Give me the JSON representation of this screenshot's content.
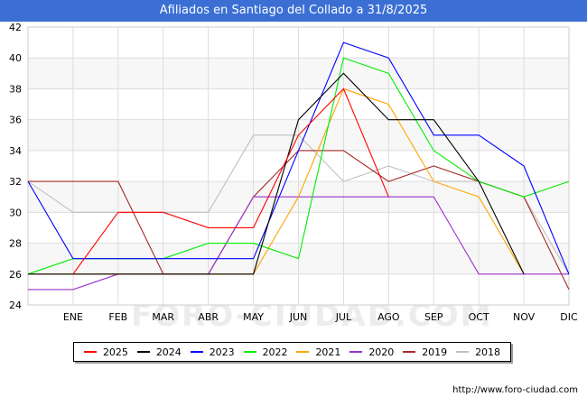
{
  "chart_data": {
    "type": "line",
    "title": "Afiliados en Santiago del Collado a 31/8/2025",
    "categories": [
      "ENE",
      "FEB",
      "MAR",
      "ABR",
      "MAY",
      "JUN",
      "JUL",
      "AGO",
      "SEP",
      "OCT",
      "NOV",
      "DIC"
    ],
    "x": [
      "",
      "ENE",
      "FEB",
      "MAR",
      "ABR",
      "MAY",
      "JUN",
      "JUL",
      "AGO",
      "SEP",
      "OCT",
      "NOV",
      "DIC"
    ],
    "ylim": [
      24,
      42
    ],
    "yticks": [
      24,
      26,
      28,
      30,
      32,
      34,
      36,
      38,
      40,
      42
    ],
    "grid": true,
    "legend_position": "bottom",
    "series": [
      {
        "name": "2018",
        "color": "#c0c0c0",
        "values": [
          32,
          30,
          30,
          30,
          30,
          35,
          35,
          32,
          33,
          32,
          32,
          31,
          26
        ]
      },
      {
        "name": "2019",
        "color": "#a52a2a",
        "values": [
          32,
          32,
          32,
          26,
          26,
          31,
          34,
          34,
          32,
          33,
          32,
          31,
          25
        ]
      },
      {
        "name": "2020",
        "color": "#9932cc",
        "values": [
          25,
          25,
          26,
          26,
          26,
          31,
          31,
          31,
          31,
          31,
          26,
          26,
          26
        ]
      },
      {
        "name": "2021",
        "color": "#ffa500",
        "values": [
          26,
          26,
          26,
          26,
          26,
          26,
          31,
          38,
          37,
          32,
          31,
          26,
          null
        ]
      },
      {
        "name": "2022",
        "color": "#00ee00",
        "values": [
          26,
          27,
          27,
          27,
          28,
          28,
          27,
          40,
          39,
          34,
          32,
          31,
          32
        ]
      },
      {
        "name": "2023",
        "color": "#0000ff",
        "values": [
          32,
          27,
          27,
          27,
          27,
          27,
          34,
          41,
          40,
          35,
          35,
          33,
          26
        ]
      },
      {
        "name": "2024",
        "color": "#000000",
        "values": [
          26,
          26,
          26,
          26,
          26,
          26,
          36,
          39,
          36,
          36,
          32,
          26,
          null
        ]
      },
      {
        "name": "2025",
        "color": "#ff0000",
        "values": [
          null,
          26,
          30,
          30,
          29,
          29,
          35,
          38,
          31,
          null,
          null,
          null,
          null
        ]
      }
    ]
  },
  "legend": [
    {
      "label": "2025",
      "color": "#ff0000"
    },
    {
      "label": "2024",
      "color": "#000000"
    },
    {
      "label": "2023",
      "color": "#0000ff"
    },
    {
      "label": "2022",
      "color": "#00ee00"
    },
    {
      "label": "2021",
      "color": "#ffa500"
    },
    {
      "label": "2020",
      "color": "#9932cc"
    },
    {
      "label": "2019",
      "color": "#a52a2a"
    },
    {
      "label": "2018",
      "color": "#c0c0c0"
    }
  ],
  "watermark": "FORO-CIUDAD.COM",
  "footer": "http://www.foro-ciudad.com"
}
